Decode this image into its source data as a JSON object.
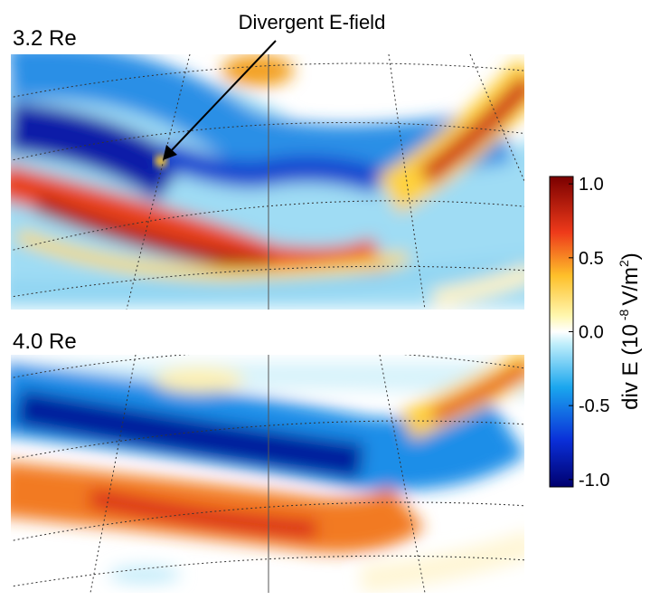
{
  "annotation": "Divergent E-field",
  "panels": [
    {
      "label": "3.2 Re"
    },
    {
      "label": "4.0 Re"
    }
  ],
  "colorbar": {
    "label": {
      "text": "div E (10",
      "exp": "-8",
      "unit": "V/m",
      "unit_exp": "2",
      "close": ")"
    },
    "lim": [
      -1.05,
      1.05
    ],
    "ticks": [
      {
        "value": 1,
        "label": "1.0"
      },
      {
        "value": 0.5,
        "label": "0.5"
      },
      {
        "value": 0,
        "label": "0.0"
      },
      {
        "value": -0.5,
        "label": "-0.5"
      },
      {
        "value": -1,
        "label": "-1.0"
      }
    ]
  }
}
